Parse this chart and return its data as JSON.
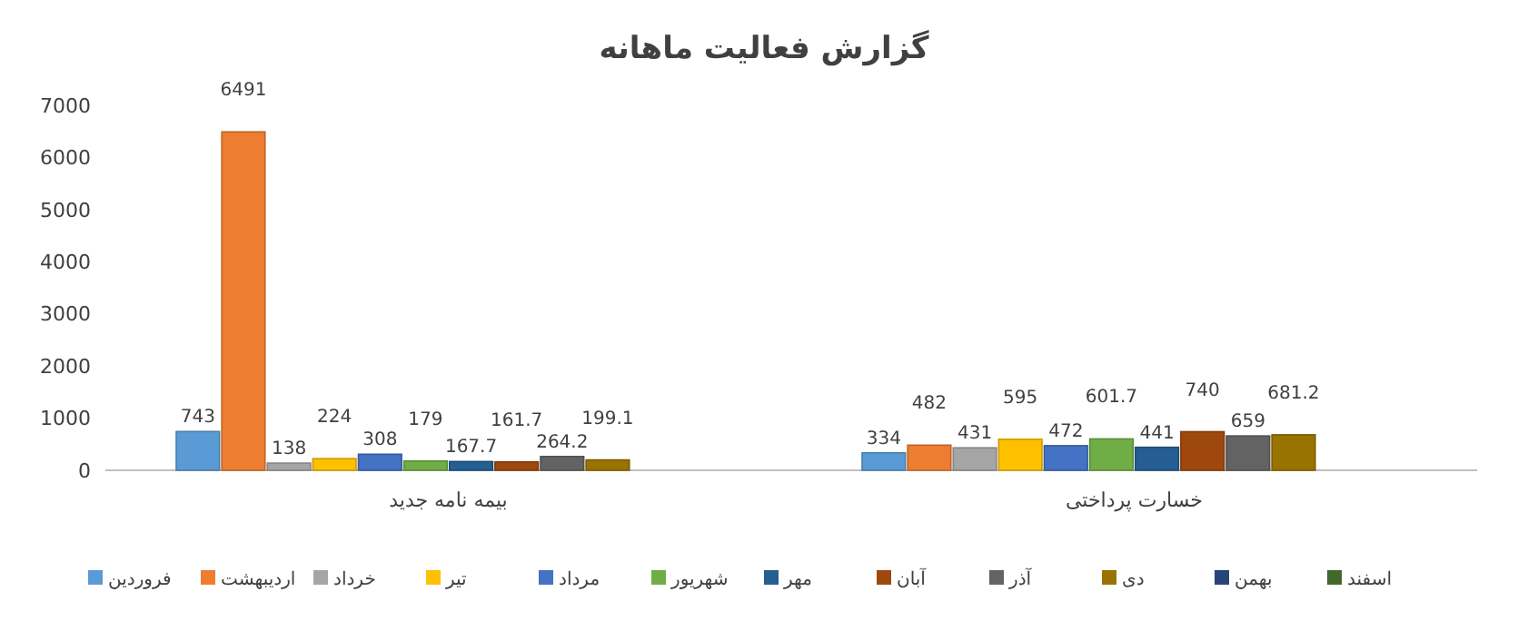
{
  "chart_data": {
    "type": "bar",
    "title": "گزارش فعالیت ماهانه",
    "categories": [
      "بیمه نامه جدید",
      "خسارت پرداختی"
    ],
    "series": [
      {
        "name": "فروردین",
        "color": "#5b9bd5",
        "values": [
          743,
          334
        ]
      },
      {
        "name": "اردیبهشت",
        "color": "#ed7d31",
        "values": [
          6491,
          482
        ]
      },
      {
        "name": "خرداد",
        "color": "#a5a5a5",
        "values": [
          138,
          431
        ]
      },
      {
        "name": "تیر",
        "color": "#ffc000",
        "values": [
          224,
          595
        ]
      },
      {
        "name": "مرداد",
        "color": "#4472c4",
        "values": [
          308,
          472
        ]
      },
      {
        "name": "شهریور",
        "color": "#70ad47",
        "values": [
          179,
          601.7
        ]
      },
      {
        "name": "مهر",
        "color": "#255e91",
        "values": [
          167.7,
          441
        ]
      },
      {
        "name": "آبان",
        "color": "#9e480e",
        "values": [
          161.7,
          740
        ]
      },
      {
        "name": "آذر",
        "color": "#636363",
        "values": [
          264.2,
          659
        ]
      },
      {
        "name": "دی",
        "color": "#997300",
        "values": [
          199.1,
          681.2
        ]
      },
      {
        "name": "بهمن",
        "color": "#264478",
        "values": [
          null,
          null
        ]
      },
      {
        "name": "اسفند",
        "color": "#43682b",
        "values": [
          null,
          null
        ]
      }
    ],
    "ylim": [
      0,
      7000
    ],
    "yticks": [
      0,
      1000,
      2000,
      3000,
      4000,
      5000,
      6000,
      7000
    ],
    "grid": false,
    "legend": "bottom",
    "data_labels": true
  }
}
